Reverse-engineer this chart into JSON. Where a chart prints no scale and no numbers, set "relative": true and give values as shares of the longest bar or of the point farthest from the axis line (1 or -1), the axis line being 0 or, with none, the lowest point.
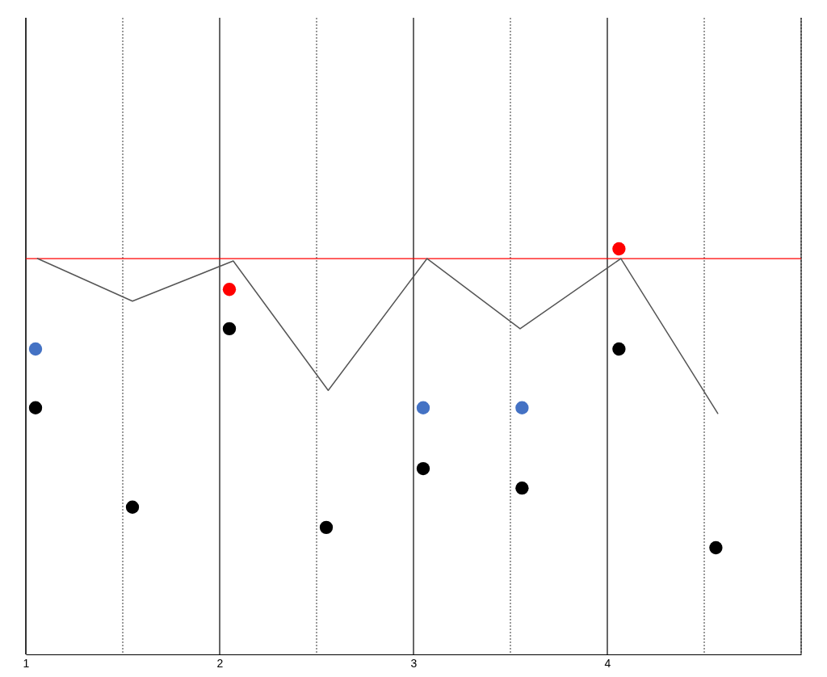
{
  "chart_data": {
    "type": "scatter",
    "relative": true,
    "xlim": [
      1,
      5
    ],
    "xticks": [
      1,
      {
        "value": 1.5,
        "label": null
      },
      2,
      {
        "value": 2.5,
        "label": null
      },
      3,
      {
        "value": 3.5,
        "label": null
      },
      4,
      {
        "value": 4.5,
        "label": null
      },
      {
        "value": 5,
        "label": null
      }
    ],
    "grid": "x",
    "marker": "circle",
    "series": [
      {
        "type": "line",
        "color": "#555555",
        "marker": "none",
        "x": [
          1.06,
          1.55,
          2.07,
          2.56,
          3.07,
          3.55,
          4.07,
          4.57
        ],
        "values": [
          0.976,
          0.871,
          0.97,
          0.651,
          0.976,
          0.803,
          0.976,
          0.594
        ]
      },
      {
        "color": "#000000",
        "x": [
          1.05,
          1.55,
          2.05,
          2.55,
          3.05,
          3.56,
          4.06,
          4.56
        ],
        "values": [
          0.608,
          0.363,
          0.803,
          0.313,
          0.458,
          0.41,
          0.753,
          0.263
        ]
      },
      {
        "color": "#4472c4",
        "x": [
          1.05,
          3.05,
          3.56
        ],
        "values": [
          0.753,
          0.608,
          0.608
        ]
      },
      {
        "color": "#ff0000",
        "x": [
          2.05,
          4.06
        ],
        "values": [
          0.9,
          1
        ]
      }
    ],
    "ref_lines": [
      {
        "axis": "y",
        "value": 0.976,
        "color": "#ff0000"
      }
    ]
  }
}
